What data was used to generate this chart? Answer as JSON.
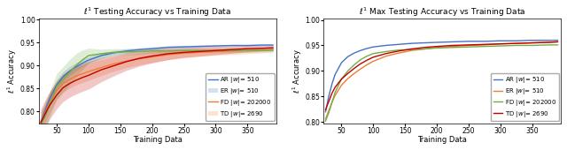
{
  "left_title": "$\\ell^1$ Testing Accuracy vs Training Data",
  "right_title": "$\\ell^1$ Max Testing Accuracy vs Training Data",
  "xlabel": "Training Data",
  "ylabel": "$\\ell^1$ Accuracy",
  "legend_labels": [
    "AR $|w|$= 510",
    "ER $|w|$= 510",
    "FD $|w|$= 202000",
    "TD $|w|$= 2690"
  ],
  "colors": [
    "#4472C4",
    "#ED7D31",
    "#70AD47",
    "#C00000"
  ],
  "x": [
    25,
    30,
    35,
    40,
    50,
    60,
    70,
    80,
    90,
    100,
    120,
    140,
    160,
    180,
    200,
    225,
    250,
    275,
    300,
    325,
    350,
    375,
    390
  ],
  "left_mean": {
    "AR": [
      0.778,
      0.796,
      0.814,
      0.831,
      0.858,
      0.876,
      0.888,
      0.897,
      0.905,
      0.912,
      0.922,
      0.928,
      0.932,
      0.935,
      0.937,
      0.94,
      0.941,
      0.942,
      0.943,
      0.944,
      0.944,
      0.945,
      0.945
    ],
    "ER": [
      0.776,
      0.792,
      0.808,
      0.822,
      0.846,
      0.861,
      0.87,
      0.877,
      0.882,
      0.887,
      0.896,
      0.904,
      0.91,
      0.915,
      0.919,
      0.924,
      0.927,
      0.929,
      0.931,
      0.932,
      0.933,
      0.934,
      0.935
    ],
    "FD": [
      0.773,
      0.785,
      0.8,
      0.82,
      0.855,
      0.87,
      0.885,
      0.9,
      0.912,
      0.922,
      0.926,
      0.929,
      0.93,
      0.931,
      0.932,
      0.932,
      0.933,
      0.933,
      0.933,
      0.933,
      0.933,
      0.934,
      0.934
    ],
    "TD": [
      0.776,
      0.79,
      0.804,
      0.816,
      0.836,
      0.852,
      0.861,
      0.868,
      0.874,
      0.879,
      0.891,
      0.9,
      0.909,
      0.916,
      0.921,
      0.926,
      0.929,
      0.931,
      0.933,
      0.935,
      0.937,
      0.938,
      0.939
    ]
  },
  "left_std": {
    "AR": [
      0.012,
      0.012,
      0.012,
      0.012,
      0.012,
      0.011,
      0.01,
      0.009,
      0.008,
      0.007,
      0.006,
      0.005,
      0.005,
      0.004,
      0.004,
      0.003,
      0.003,
      0.003,
      0.002,
      0.002,
      0.002,
      0.002,
      0.002
    ],
    "ER": [
      0.022,
      0.022,
      0.022,
      0.022,
      0.02,
      0.019,
      0.019,
      0.019,
      0.019,
      0.019,
      0.017,
      0.016,
      0.014,
      0.013,
      0.012,
      0.011,
      0.01,
      0.009,
      0.008,
      0.008,
      0.007,
      0.006,
      0.006
    ],
    "FD": [
      0.028,
      0.028,
      0.028,
      0.028,
      0.028,
      0.028,
      0.028,
      0.026,
      0.022,
      0.016,
      0.01,
      0.008,
      0.007,
      0.006,
      0.005,
      0.005,
      0.004,
      0.004,
      0.004,
      0.004,
      0.004,
      0.004,
      0.004
    ],
    "TD": [
      0.03,
      0.03,
      0.03,
      0.03,
      0.03,
      0.03,
      0.03,
      0.03,
      0.03,
      0.03,
      0.026,
      0.022,
      0.019,
      0.017,
      0.015,
      0.013,
      0.011,
      0.01,
      0.009,
      0.008,
      0.007,
      0.006,
      0.006
    ]
  },
  "right_mean": {
    "AR": [
      0.82,
      0.85,
      0.874,
      0.893,
      0.916,
      0.928,
      0.935,
      0.94,
      0.944,
      0.947,
      0.95,
      0.952,
      0.954,
      0.955,
      0.956,
      0.957,
      0.958,
      0.958,
      0.959,
      0.959,
      0.96,
      0.96,
      0.96
    ],
    "ER": [
      0.806,
      0.822,
      0.838,
      0.852,
      0.872,
      0.885,
      0.895,
      0.904,
      0.912,
      0.919,
      0.929,
      0.935,
      0.94,
      0.943,
      0.946,
      0.948,
      0.95,
      0.951,
      0.953,
      0.954,
      0.955,
      0.956,
      0.957
    ],
    "FD": [
      0.802,
      0.818,
      0.838,
      0.858,
      0.884,
      0.9,
      0.912,
      0.922,
      0.929,
      0.934,
      0.938,
      0.941,
      0.942,
      0.943,
      0.945,
      0.946,
      0.947,
      0.948,
      0.949,
      0.95,
      0.95,
      0.951,
      0.951
    ],
    "TD": [
      0.824,
      0.84,
      0.856,
      0.868,
      0.884,
      0.895,
      0.905,
      0.914,
      0.921,
      0.927,
      0.934,
      0.939,
      0.943,
      0.946,
      0.948,
      0.95,
      0.951,
      0.952,
      0.953,
      0.954,
      0.955,
      0.956,
      0.957
    ]
  },
  "ylim_left": [
    0.775,
    1.002
  ],
  "ylim_right": [
    0.798,
    1.002
  ],
  "yticks_left": [
    0.8,
    0.85,
    0.9,
    0.95,
    1.0
  ],
  "yticks_right": [
    0.8,
    0.85,
    0.9,
    0.95,
    1.0
  ],
  "xticks": [
    50,
    100,
    150,
    200,
    250,
    300,
    350
  ],
  "xlim": [
    22,
    395
  ]
}
